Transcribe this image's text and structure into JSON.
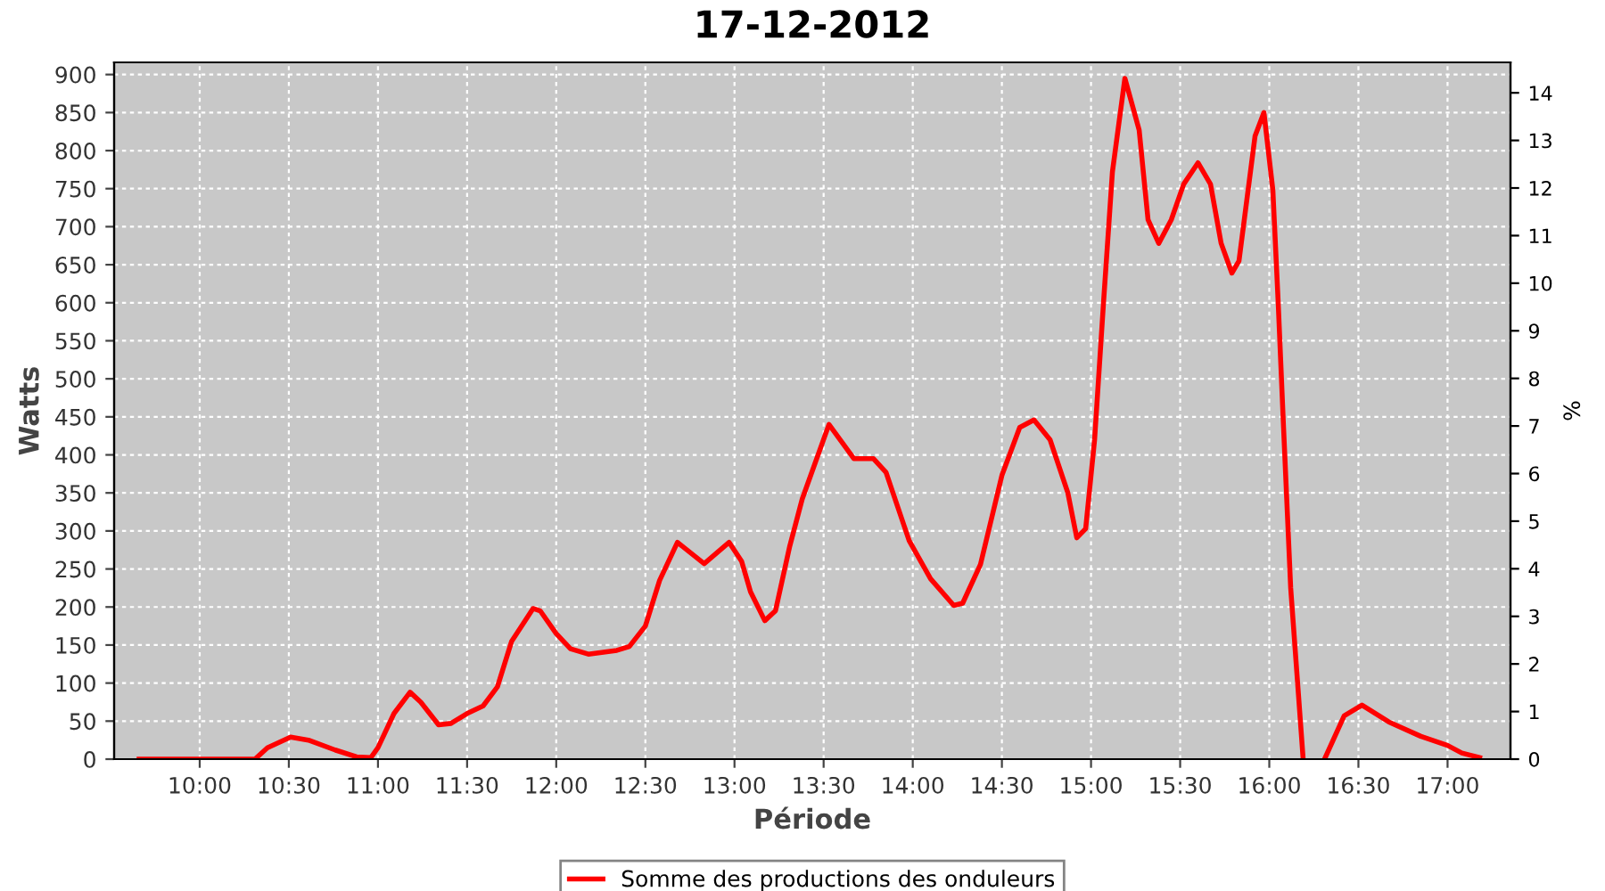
{
  "chart_data": {
    "type": "line",
    "title": "17-12-2012",
    "xlabel": "Période",
    "ylabel": "Watts",
    "y2label": "%",
    "xlim": [
      9.52,
      17.353
    ],
    "ylim": [
      0,
      916
    ],
    "y2lim": [
      0,
      14.64
    ],
    "xticks": [
      {
        "value": 10,
        "label": "10:00"
      },
      {
        "value": 10.5,
        "label": "10:30"
      },
      {
        "value": 11,
        "label": "11:00"
      },
      {
        "value": 11.5,
        "label": "11:30"
      },
      {
        "value": 12,
        "label": "12:00"
      },
      {
        "value": 12.5,
        "label": "12:30"
      },
      {
        "value": 13,
        "label": "13:00"
      },
      {
        "value": 13.5,
        "label": "13:30"
      },
      {
        "value": 14,
        "label": "14:00"
      },
      {
        "value": 14.5,
        "label": "14:30"
      },
      {
        "value": 15,
        "label": "15:00"
      },
      {
        "value": 15.5,
        "label": "15:30"
      },
      {
        "value": 16,
        "label": "16:00"
      },
      {
        "value": 16.5,
        "label": "16:30"
      },
      {
        "value": 17,
        "label": "17:00"
      }
    ],
    "yticks": [
      0,
      50,
      100,
      150,
      200,
      250,
      300,
      350,
      400,
      450,
      500,
      550,
      600,
      650,
      700,
      750,
      800,
      850,
      900
    ],
    "y2ticks": [
      0,
      1,
      2,
      3,
      4,
      5,
      6,
      7,
      8,
      9,
      10,
      11,
      12,
      13,
      14
    ],
    "grid": true,
    "legend": "bottom",
    "marker": "none",
    "line_style": "solid",
    "series": [
      {
        "name": "Somme des productions des onduleurs",
        "color": "#ff0000",
        "x": [
          9.66,
          10.31,
          10.38,
          10.51,
          10.61,
          10.76,
          10.88,
          10.96,
          11.0,
          11.09,
          11.18,
          11.24,
          11.34,
          11.41,
          11.5,
          11.59,
          11.67,
          11.75,
          11.87,
          11.91,
          12.0,
          12.08,
          12.18,
          12.34,
          12.41,
          12.5,
          12.58,
          12.68,
          12.83,
          12.97,
          13.04,
          13.09,
          13.17,
          13.23,
          13.31,
          13.38,
          13.53,
          13.67,
          13.78,
          13.85,
          13.98,
          14.1,
          14.23,
          14.28,
          14.38,
          14.5,
          14.6,
          14.68,
          14.77,
          14.87,
          14.92,
          14.97,
          15.02,
          15.07,
          15.12,
          15.19,
          15.27,
          15.32,
          15.38,
          15.45,
          15.52,
          15.6,
          15.67,
          15.73,
          15.79,
          15.83,
          15.92,
          15.97,
          16.02,
          16.05,
          16.08,
          16.12,
          16.19,
          16.25,
          16.31,
          16.42,
          16.52,
          16.67,
          16.85,
          17.0,
          17.08,
          17.18
        ],
        "values": [
          0,
          0,
          15,
          29,
          25,
          12,
          3,
          2,
          15,
          60,
          88,
          75,
          45,
          47,
          60,
          70,
          95,
          155,
          198,
          195,
          165,
          145,
          138,
          143,
          148,
          175,
          235,
          285,
          257,
          285,
          260,
          220,
          182,
          195,
          280,
          342,
          440,
          395,
          395,
          377,
          287,
          237,
          202,
          205,
          256,
          373,
          436,
          446,
          420,
          350,
          291,
          303,
          420,
          600,
          772,
          895,
          827,
          709,
          678,
          709,
          756,
          784,
          756,
          678,
          639,
          655,
          819,
          850,
          748,
          600,
          436,
          225,
          0,
          null,
          0,
          57,
          71,
          49,
          30,
          18,
          8,
          2
        ]
      }
    ]
  }
}
